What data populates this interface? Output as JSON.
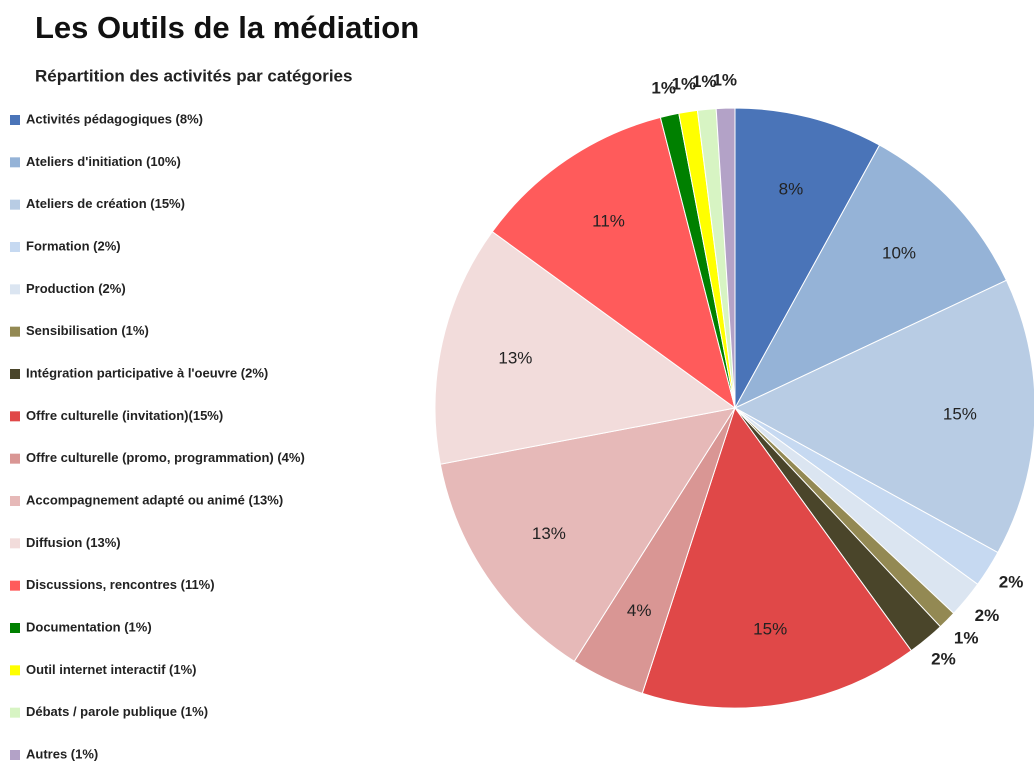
{
  "chart_data": {
    "type": "pie",
    "title": "Les Outils de la médiation",
    "subtitle": "Répartition des activités par catégories",
    "categories": [
      "Activités pédagogiques (8%)",
      "Ateliers d'initiation (10%)",
      "Ateliers de création (15%)",
      "Formation (2%)",
      "Production (2%)",
      "Sensibilisation (1%)",
      "Intégration participative à l'oeuvre (2%)",
      "Offre culturelle (invitation)(15%)",
      "Offre culturelle (promo, programmation) (4%)",
      "Accompagnement adapté ou animé (13%)",
      "Diffusion (13%)",
      "Discussions, rencontres (11%)",
      "Documentation (1%)",
      "Outil internet interactif (1%)",
      "Débats / parole publique (1%)",
      "Autres (1%)"
    ],
    "values": [
      8,
      10,
      15,
      2,
      2,
      1,
      2,
      15,
      4,
      13,
      13,
      11,
      1,
      1,
      1,
      1
    ],
    "value_labels": [
      "8%",
      "10%",
      "15%",
      "2%",
      "2%",
      "1%",
      "2%",
      "15%",
      "4%",
      "13%",
      "13%",
      "11%",
      "1%",
      "1%",
      "1%",
      "1%"
    ],
    "colors": [
      "#4a74b8",
      "#95b3d7",
      "#b8cce4",
      "#c6d9f1",
      "#dbe5f1",
      "#938953",
      "#4a452a",
      "#e04848",
      "#d99694",
      "#e6b9b8",
      "#f2dcdb",
      "#ff5b5b",
      "#008000",
      "#ffff00",
      "#d7f4c3",
      "#b3a2c7"
    ],
    "legend": "left"
  }
}
